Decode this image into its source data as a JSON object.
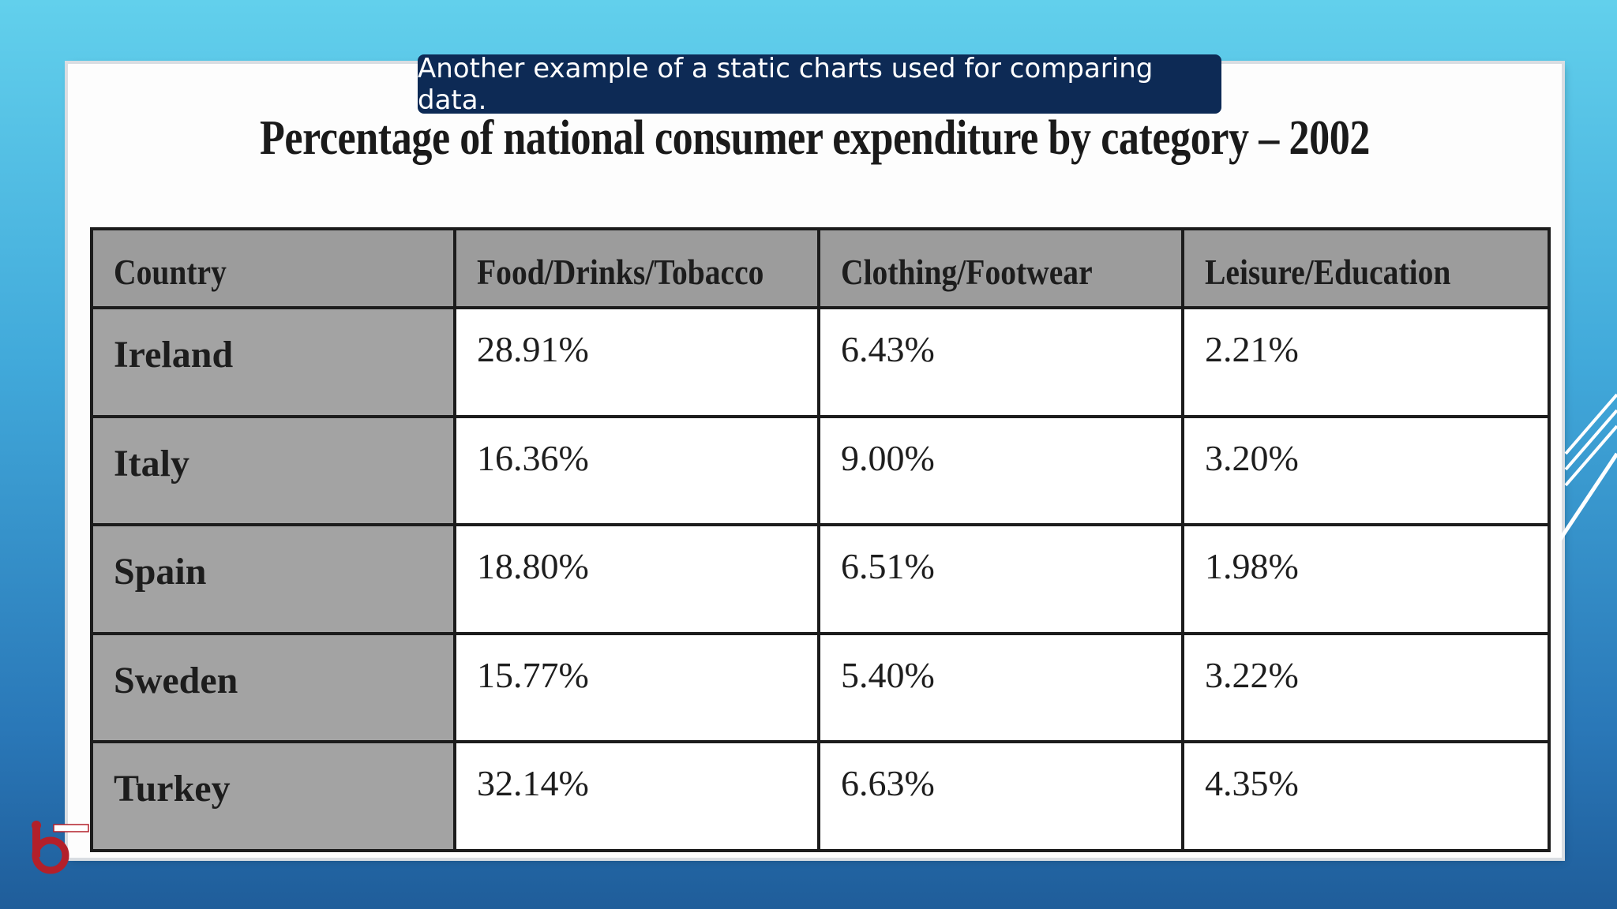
{
  "caption": "Another example of a static charts used for comparing data.",
  "colors": {
    "caption_bg": "#0d2a55",
    "header_fill": "#9c9c9c",
    "country_fill": "#a3a3a3",
    "cell_fill": "#ffffff"
  },
  "chart_data": {
    "type": "table",
    "title": "Percentage of national consumer expenditure by category – 2002",
    "columns": [
      "Country",
      "Food/Drinks/Tobacco",
      "Clothing/Footwear",
      "Leisure/Education"
    ],
    "rows": [
      {
        "country": "Ireland",
        "values": [
          "28.91%",
          "6.43%",
          "2.21%"
        ]
      },
      {
        "country": "Italy",
        "values": [
          "16.36%",
          "9.00%",
          "3.20%"
        ]
      },
      {
        "country": "Spain",
        "values": [
          "18.80%",
          "6.51%",
          "1.98%"
        ]
      },
      {
        "country": "Sweden",
        "values": [
          "15.77%",
          "5.40%",
          "3.22%"
        ]
      },
      {
        "country": "Turkey",
        "values": [
          "32.14%",
          "6.63%",
          "4.35%"
        ]
      }
    ]
  }
}
